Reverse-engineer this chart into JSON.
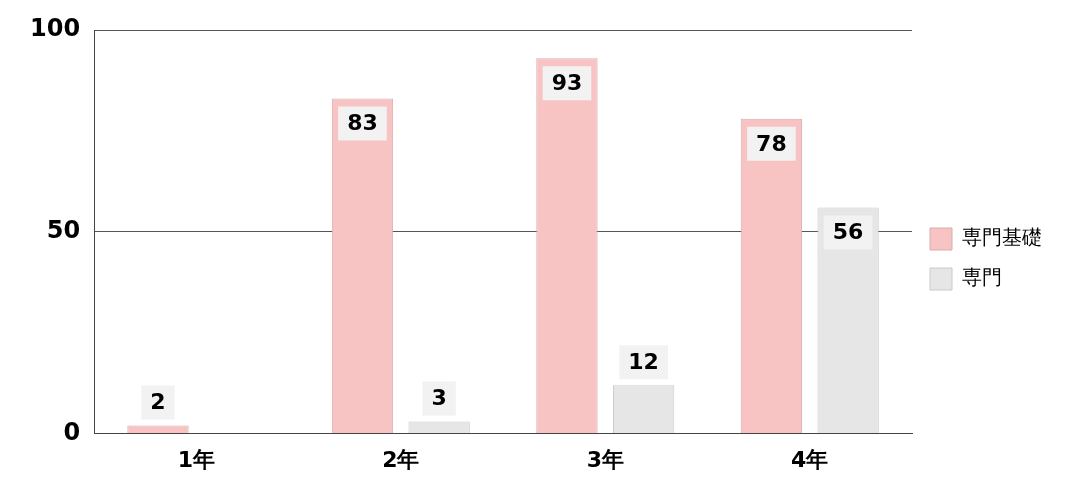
{
  "chart_data": {
    "type": "bar",
    "categories": [
      "1年",
      "2年",
      "3年",
      "4年"
    ],
    "series": [
      {
        "name": "専門基礎",
        "color": "#f7c3c3",
        "values": [
          2,
          83,
          93,
          78
        ],
        "value_labels": [
          "2",
          "83",
          "93",
          "78"
        ]
      },
      {
        "name": "専門",
        "color": "#e6e6e6",
        "values": [
          0,
          3,
          12,
          56
        ],
        "value_labels": [
          null,
          "3",
          "12",
          "56"
        ]
      }
    ],
    "ylim": [
      0,
      100
    ],
    "yticks": [
      0,
      50,
      100
    ],
    "grid": "y",
    "legend": "right"
  }
}
